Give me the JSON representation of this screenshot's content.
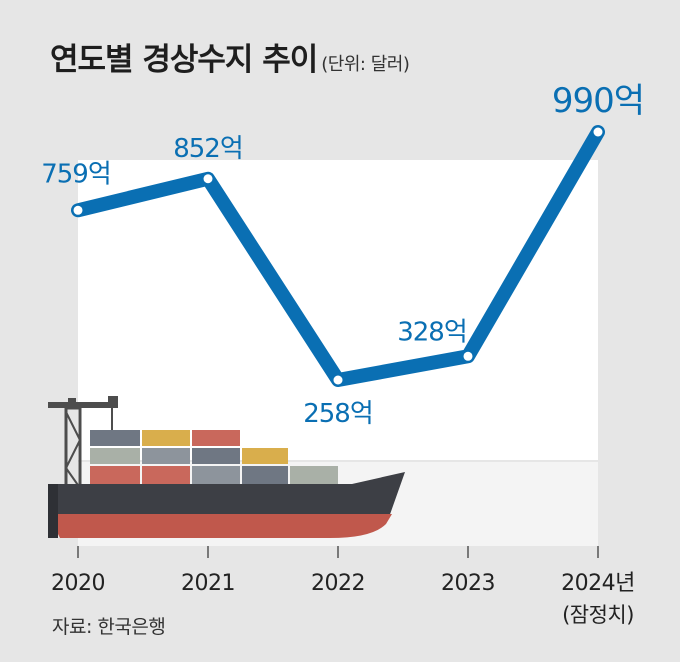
{
  "chart_data": {
    "type": "line",
    "title": "연도별 경상수지 추이",
    "unit_note": "(단위: 달러)",
    "categories": [
      "2020",
      "2021",
      "2022",
      "2023",
      "2024년"
    ],
    "category_sublabels": [
      "",
      "",
      "",
      "",
      "(잠정치)"
    ],
    "series": [
      {
        "values": [
          759,
          852,
          258,
          328,
          990
        ]
      }
    ],
    "value_labels": [
      "759억",
      "852억",
      "258억",
      "328억",
      "990억"
    ],
    "ylim": [
      0,
      1050
    ],
    "grid": false,
    "line_color": "#0a6fb3",
    "panel_color": "#ffffff"
  },
  "source": "자료: 한국은행"
}
